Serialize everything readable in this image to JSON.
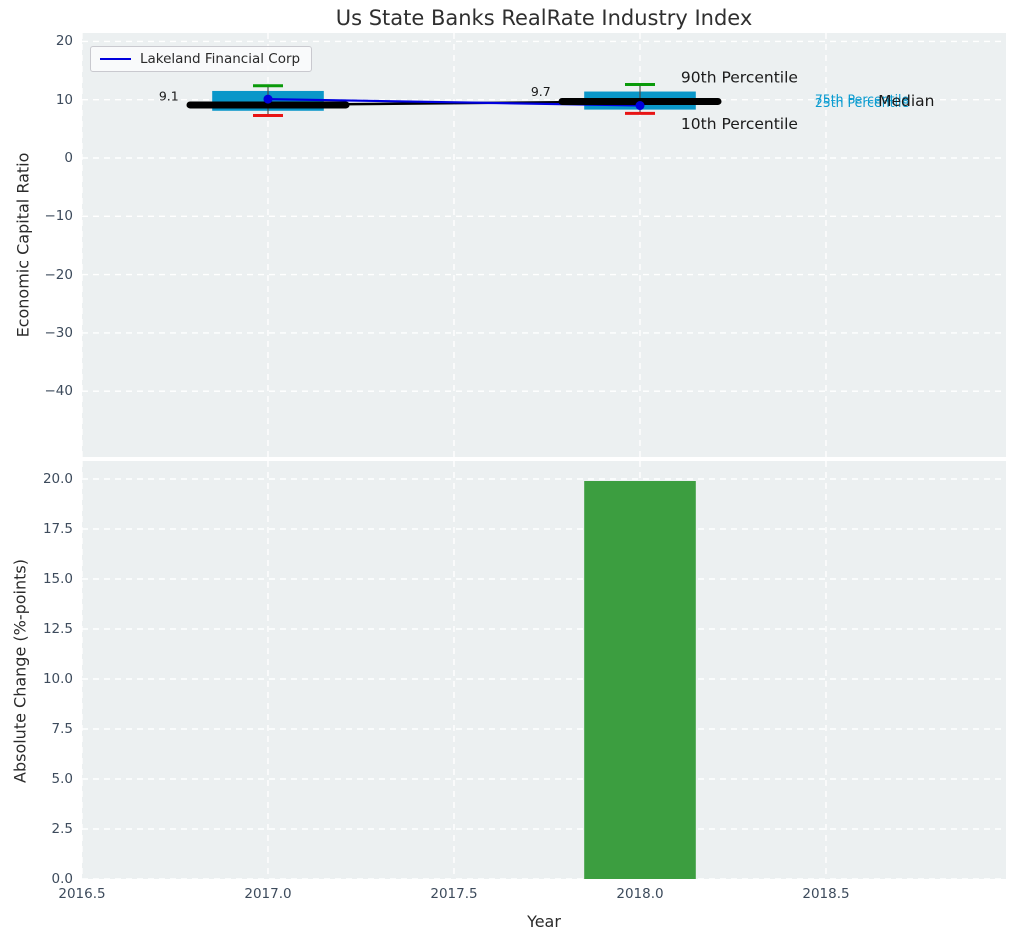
{
  "title": "Us State Banks RealRate Industry Index",
  "legend": {
    "label": "Lakeland Financial Corp",
    "line_color": "#0000dd"
  },
  "axes": {
    "top": {
      "ylabel": "Economic Capital Ratio",
      "ytick_labels": [
        "20",
        "10",
        "0",
        "−10",
        "−20",
        "−30",
        "−40"
      ],
      "ytick_values": [
        20,
        10,
        0,
        -10,
        -20,
        -30,
        -40
      ]
    },
    "bottom": {
      "ylabel": "Absolute Change (%-points)",
      "xlabel": "Year",
      "ytick_labels": [
        "20.0",
        "17.5",
        "15.0",
        "12.5",
        "10.0",
        "7.5",
        "5.0",
        "2.5",
        "0.0"
      ],
      "ytick_values": [
        20,
        17.5,
        15,
        12.5,
        10,
        7.5,
        5,
        2.5,
        0
      ],
      "xtick_labels": [
        "2016.5",
        "2017.0",
        "2017.5",
        "2018.0",
        "2018.5"
      ],
      "xtick_values": [
        2016.5,
        2017.0,
        2017.5,
        2018.0,
        2018.5
      ]
    }
  },
  "colors": {
    "plot_background": "#ecf0f1",
    "grid": "#ffffff",
    "box_fill": "#0a97c9",
    "whisker_cap_high": "#0a9a0a",
    "whisker_cap_low": "#e81414",
    "median_line": "#000000",
    "company_line": "#0000dd",
    "bar_fill": "#3c9e40",
    "annotation_dark": "#1a1a1a",
    "annotation_cyan": "#0a9bd0",
    "tick_text": "#3d4b5c"
  },
  "chart_data": [
    {
      "type": "boxplot+line",
      "title": "Us State Banks RealRate Industry Index",
      "ylabel": "Economic Capital Ratio",
      "xlim": [
        2016.5,
        2018.98
      ],
      "ylim": [
        -51.3,
        21.4
      ],
      "grid": "white dashed, horizontal and vertical",
      "legend_position": "upper left",
      "boxes": [
        {
          "year": 2017,
          "p10": 7.3,
          "p25": 8.1,
          "median": 9.1,
          "p75": 11.5,
          "p90": 12.4
        },
        {
          "year": 2018,
          "p10": 7.65,
          "p25": 8.3,
          "median": 9.7,
          "p75": 11.4,
          "p90": 12.6
        }
      ],
      "box_width_years": 0.3,
      "median_line": {
        "x": [
          2017,
          2018
        ],
        "y": [
          9.1,
          9.7
        ]
      },
      "company_line": {
        "name": "Lakeland Financial Corp",
        "x": [
          2017,
          2018
        ],
        "y": [
          10.1,
          9.0
        ]
      },
      "annotations": [
        {
          "text": "9.1",
          "x": 2016.76,
          "y": 10.6,
          "color": "#1a1a1a",
          "size": 12.5,
          "anchor": "end"
        },
        {
          "text": "9.7",
          "x": 2017.76,
          "y": 11.4,
          "color": "#1a1a1a",
          "size": 12.5,
          "anchor": "end"
        },
        {
          "text": "90th Percentile",
          "x": 2018.11,
          "y": 13.8,
          "color": "#1a1a1a",
          "size": 15.5,
          "anchor": "start"
        },
        {
          "text": "10th Percentile",
          "x": 2018.11,
          "y": 5.8,
          "color": "#1a1a1a",
          "size": 15.5,
          "anchor": "start"
        },
        {
          "text": "75th Percentile",
          "x": 2018.47,
          "y": 10.1,
          "color": "#0a9bd0",
          "size": 12.5,
          "anchor": "start"
        },
        {
          "text": "25th Percentile",
          "x": 2018.47,
          "y": 9.5,
          "color": "#0a9bd0",
          "size": 12.5,
          "anchor": "start"
        },
        {
          "text": "Median",
          "x": 2018.64,
          "y": 9.8,
          "color": "#1a1a1a",
          "size": 15.5,
          "anchor": "start"
        }
      ]
    },
    {
      "type": "bar",
      "xlabel": "Year",
      "ylabel": "Absolute Change (%-points)",
      "categories": [
        2018
      ],
      "values": [
        19.9
      ],
      "bar_width_years": 0.3,
      "xlim": [
        2016.5,
        2018.98
      ],
      "ylim": [
        0,
        20.9
      ],
      "grid": "white dashed, horizontal and vertical"
    }
  ]
}
